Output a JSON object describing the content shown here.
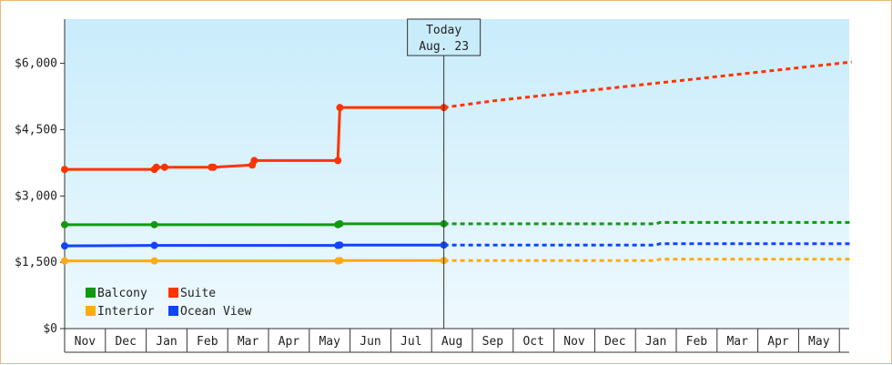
{
  "chart_data": {
    "type": "line",
    "y_ticks": [
      {
        "value": 0,
        "label": "$0"
      },
      {
        "value": 1500,
        "label": "$1,500"
      },
      {
        "value": 3000,
        "label": "$3,000"
      },
      {
        "value": 4500,
        "label": "$4,500"
      },
      {
        "value": 6000,
        "label": "$6,000"
      }
    ],
    "ylim": [
      0,
      7000
    ],
    "x_months": [
      "Nov",
      "Dec",
      "Jan",
      "Feb",
      "Mar",
      "Apr",
      "May",
      "Jun",
      "Jul",
      "Aug",
      "Sep",
      "Oct",
      "Nov",
      "Dec",
      "Jan",
      "Feb",
      "Mar",
      "Apr",
      "May"
    ],
    "today": {
      "line1": "Today",
      "line2": "Aug. 23",
      "x": 9.3
    },
    "legend_placement": "bottom-left",
    "series": [
      {
        "name": "Suite",
        "color": "#ff3300",
        "history": [
          [
            0,
            3600
          ],
          [
            2.2,
            3600
          ],
          [
            2.25,
            3650
          ],
          [
            2.45,
            3650
          ],
          [
            2.5,
            3650
          ],
          [
            3.6,
            3650
          ],
          [
            3.65,
            3650
          ],
          [
            4.6,
            3700
          ],
          [
            4.65,
            3800
          ],
          [
            6.7,
            3800
          ],
          [
            6.75,
            5000
          ],
          [
            9.3,
            5000
          ]
        ],
        "markers": [
          [
            0,
            3600
          ],
          [
            2.2,
            3600
          ],
          [
            2.25,
            3650
          ],
          [
            2.45,
            3650
          ],
          [
            3.6,
            3650
          ],
          [
            3.65,
            3650
          ],
          [
            4.6,
            3700
          ],
          [
            4.65,
            3800
          ],
          [
            6.7,
            3800
          ],
          [
            6.75,
            5000
          ],
          [
            9.3,
            5000
          ]
        ],
        "forecast": [
          [
            9.3,
            5000
          ],
          [
            10.5,
            5150
          ],
          [
            11.5,
            5250
          ],
          [
            12.5,
            5350
          ],
          [
            13.5,
            5450
          ],
          [
            14.5,
            5550
          ],
          [
            15.5,
            5650
          ],
          [
            16.5,
            5750
          ],
          [
            17.5,
            5850
          ],
          [
            18.5,
            5950
          ],
          [
            19.3,
            6030
          ]
        ]
      },
      {
        "name": "Balcony",
        "color": "#119911",
        "history": [
          [
            0,
            2350
          ],
          [
            2.2,
            2350
          ],
          [
            6.7,
            2350
          ],
          [
            6.75,
            2370
          ],
          [
            9.3,
            2370
          ]
        ],
        "markers": [
          [
            0,
            2350
          ],
          [
            2.2,
            2350
          ],
          [
            6.7,
            2350
          ],
          [
            6.75,
            2370
          ],
          [
            9.3,
            2370
          ]
        ],
        "forecast": [
          [
            9.3,
            2370
          ],
          [
            14.5,
            2370
          ],
          [
            14.6,
            2400
          ],
          [
            19.3,
            2400
          ]
        ]
      },
      {
        "name": "Ocean View",
        "color": "#1144ff",
        "history": [
          [
            0,
            1870
          ],
          [
            2.2,
            1880
          ],
          [
            6.7,
            1880
          ],
          [
            6.75,
            1890
          ],
          [
            9.3,
            1890
          ]
        ],
        "markers": [
          [
            0,
            1870
          ],
          [
            2.2,
            1880
          ],
          [
            6.7,
            1880
          ],
          [
            6.75,
            1890
          ],
          [
            9.3,
            1890
          ]
        ],
        "forecast": [
          [
            9.3,
            1890
          ],
          [
            14.5,
            1890
          ],
          [
            14.6,
            1920
          ],
          [
            19.3,
            1920
          ]
        ]
      },
      {
        "name": "Interior",
        "color": "#ffaa11",
        "history": [
          [
            0,
            1530
          ],
          [
            2.2,
            1530
          ],
          [
            6.7,
            1530
          ],
          [
            6.75,
            1540
          ],
          [
            9.3,
            1540
          ]
        ],
        "markers": [
          [
            0,
            1530
          ],
          [
            2.2,
            1530
          ],
          [
            6.7,
            1530
          ],
          [
            6.75,
            1540
          ],
          [
            9.3,
            1540
          ]
        ],
        "forecast": [
          [
            9.3,
            1540
          ],
          [
            14.5,
            1540
          ],
          [
            14.6,
            1570
          ],
          [
            19.3,
            1570
          ]
        ]
      }
    ],
    "legend": [
      {
        "label": "Balcony",
        "color": "#119911"
      },
      {
        "label": "Suite",
        "color": "#ff3300"
      },
      {
        "label": "Interior",
        "color": "#ffaa11"
      },
      {
        "label": "Ocean View",
        "color": "#1144ff"
      }
    ]
  }
}
